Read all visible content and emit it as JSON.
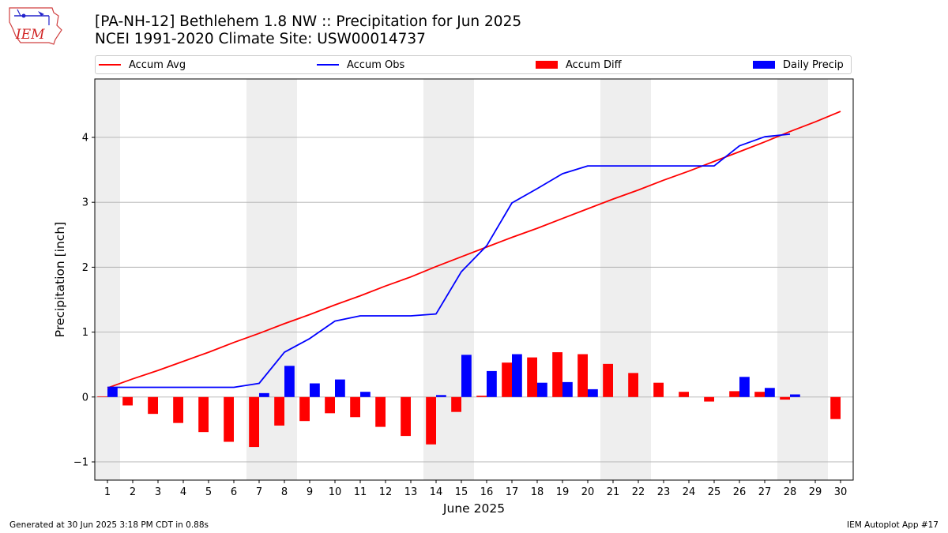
{
  "header": {
    "title_line1": "[PA-NH-12] Bethlehem 1.8 NW :: Precipitation for Jun 2025",
    "title_line2": "NCEI 1991-2020 Climate Site: USW00014737",
    "logo_text": "IEM"
  },
  "footer": {
    "left": "Generated at 30 Jun 2025 3:18 PM CDT in 0.88s",
    "right": "IEM Autoplot App #17"
  },
  "colors": {
    "accum_avg": "#ff0000",
    "accum_obs": "#0000ff",
    "accum_diff": "#ff0000",
    "daily_precip": "#0000ff",
    "weekend_shade": "#eeeeee",
    "grid": "#b0b0b0"
  },
  "chart_data": {
    "type": "bar",
    "xlabel": "June 2025",
    "ylabel": "Precipitation [inch]",
    "xlim": [
      0.5,
      30.5
    ],
    "ylim": [
      -1.28,
      4.9
    ],
    "x_ticks": [
      1,
      2,
      3,
      4,
      5,
      6,
      7,
      8,
      9,
      10,
      11,
      12,
      13,
      14,
      15,
      16,
      17,
      18,
      19,
      20,
      21,
      22,
      23,
      24,
      25,
      26,
      27,
      28,
      29,
      30
    ],
    "y_ticks": [
      -1,
      0,
      1,
      2,
      3,
      4
    ],
    "grid": "horizontal",
    "legend_position": "top",
    "legend": [
      "Accum Avg",
      "Accum Obs",
      "Accum Diff",
      "Daily Precip"
    ],
    "shaded_days": [
      [
        1,
        1
      ],
      [
        7,
        8
      ],
      [
        14,
        15
      ],
      [
        21,
        22
      ],
      [
        28,
        29
      ]
    ],
    "days": [
      1,
      2,
      3,
      4,
      5,
      6,
      7,
      8,
      9,
      10,
      11,
      12,
      13,
      14,
      15,
      16,
      17,
      18,
      19,
      20,
      21,
      22,
      23,
      24,
      25,
      26,
      27,
      28,
      29,
      30
    ],
    "series": [
      {
        "name": "Accum Avg",
        "kind": "line",
        "values": [
          0.14,
          0.28,
          0.41,
          0.55,
          0.69,
          0.84,
          0.98,
          1.13,
          1.27,
          1.42,
          1.56,
          1.71,
          1.85,
          2.01,
          2.16,
          2.31,
          2.46,
          2.6,
          2.75,
          2.9,
          3.05,
          3.19,
          3.34,
          3.48,
          3.63,
          3.78,
          3.93,
          4.09,
          4.24,
          4.4
        ]
      },
      {
        "name": "Accum Obs",
        "kind": "line",
        "values": [
          0.15,
          0.15,
          0.15,
          0.15,
          0.15,
          0.15,
          0.21,
          0.69,
          0.9,
          1.17,
          1.25,
          1.25,
          1.25,
          1.28,
          1.93,
          2.33,
          2.99,
          3.21,
          3.44,
          3.56,
          3.56,
          3.56,
          3.56,
          3.56,
          3.56,
          3.87,
          4.01,
          4.05,
          null,
          null
        ]
      },
      {
        "name": "Accum Diff",
        "kind": "bar",
        "values": [
          0.01,
          -0.13,
          -0.26,
          -0.4,
          -0.54,
          -0.69,
          -0.77,
          -0.44,
          -0.37,
          -0.25,
          -0.31,
          -0.46,
          -0.6,
          -0.73,
          -0.23,
          0.02,
          0.53,
          0.61,
          0.69,
          0.66,
          0.51,
          0.37,
          0.22,
          0.08,
          -0.07,
          0.09,
          0.08,
          -0.04,
          null,
          -0.34
        ]
      },
      {
        "name": "Daily Precip",
        "kind": "bar",
        "values": [
          0.15,
          0,
          0,
          0,
          0,
          0,
          0.06,
          0.48,
          0.21,
          0.27,
          0.08,
          0,
          0,
          0.03,
          0.65,
          0.4,
          0.66,
          0.22,
          0.23,
          0.12,
          0,
          0,
          0,
          0,
          0,
          0.31,
          0.14,
          0.04,
          null,
          null
        ]
      }
    ]
  }
}
